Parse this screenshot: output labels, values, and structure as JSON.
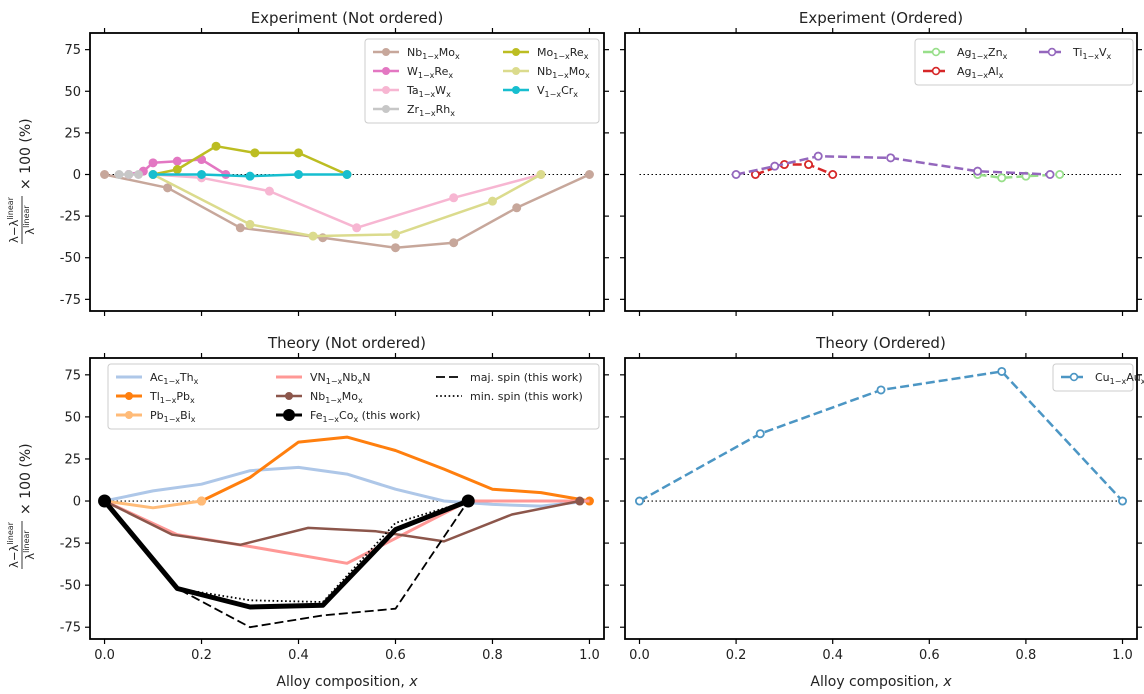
{
  "x_axis_label": "Alloy composition, x",
  "y_axis_label": {
    "numerator": "λ−λ",
    "numerator_sup": "linear",
    "denominator": "λ",
    "denominator_sup": "linear",
    "suffix": "× 100 (%)"
  },
  "chart_data": [
    {
      "type": "line",
      "title": "Experiment (Not ordered)",
      "xlim": [
        -0.03,
        1.03
      ],
      "ylim": [
        -82,
        85
      ],
      "xticks": [
        0.0,
        0.2,
        0.4,
        0.6,
        0.8,
        1.0
      ],
      "yticks": [
        -75,
        -50,
        -25,
        0,
        25,
        50,
        75
      ],
      "show_xtick_labels": false,
      "show_ytick_labels": true,
      "legend_position": "top-right",
      "legend_columns": 2,
      "series": [
        {
          "name": "Nb1−xMox",
          "label_parts": [
            [
              "Nb",
              ""
            ],
            [
              "1−x",
              "sub"
            ],
            [
              "Mo",
              ""
            ],
            [
              "x",
              "sub"
            ]
          ],
          "color": "#c7a79b",
          "style": "solid",
          "marker": "filled",
          "x": [
            0.0,
            0.13,
            0.28,
            0.45,
            0.6,
            0.72,
            0.85,
            1.0
          ],
          "y": [
            0,
            -8,
            -32,
            -38,
            -44,
            -41,
            -20,
            0
          ]
        },
        {
          "name": "W1−xRex",
          "label_parts": [
            [
              "W",
              ""
            ],
            [
              "1−x",
              "sub"
            ],
            [
              "Re",
              ""
            ],
            [
              "x",
              "sub"
            ]
          ],
          "color": "#e377c2",
          "style": "solid",
          "marker": "filled",
          "x": [
            0.05,
            0.08,
            0.1,
            0.15,
            0.2,
            0.25
          ],
          "y": [
            0,
            2,
            7,
            8,
            9,
            0
          ]
        },
        {
          "name": "Ta1−xWx",
          "label_parts": [
            [
              "Ta",
              ""
            ],
            [
              "1−x",
              "sub"
            ],
            [
              "W",
              ""
            ],
            [
              "x",
              "sub"
            ]
          ],
          "color": "#f7b6d2",
          "style": "solid",
          "marker": "filled",
          "x": [
            0.1,
            0.2,
            0.34,
            0.52,
            0.72,
            0.9
          ],
          "y": [
            0,
            -2,
            -10,
            -32,
            -14,
            0
          ]
        },
        {
          "name": "Zr1−xRhx",
          "label_parts": [
            [
              "Zr",
              ""
            ],
            [
              "1−x",
              "sub"
            ],
            [
              "Rh",
              ""
            ],
            [
              "x",
              "sub"
            ]
          ],
          "color": "#c7c7c7",
          "style": "solid",
          "marker": "filled",
          "x": [
            0.03,
            0.05,
            0.07
          ],
          "y": [
            0,
            0,
            0
          ]
        },
        {
          "name": "Mo1−xRex",
          "label_parts": [
            [
              "Mo",
              ""
            ],
            [
              "1−x",
              "sub"
            ],
            [
              "Re",
              ""
            ],
            [
              "x",
              "sub"
            ]
          ],
          "color": "#bcbd22",
          "style": "solid",
          "marker": "filled",
          "x": [
            0.1,
            0.15,
            0.23,
            0.31,
            0.4,
            0.5
          ],
          "y": [
            0,
            3,
            17,
            13,
            13,
            0
          ]
        },
        {
          "name": "Nb1−xMox",
          "label_parts": [
            [
              "Nb",
              ""
            ],
            [
              "1−x",
              "sub"
            ],
            [
              "Mo",
              ""
            ],
            [
              "x",
              "sub"
            ]
          ],
          "color": "#dbdb8d",
          "style": "solid",
          "marker": "filled",
          "x": [
            0.1,
            0.3,
            0.43,
            0.6,
            0.8,
            0.9
          ],
          "y": [
            0,
            -30,
            -37,
            -36,
            -16,
            0
          ]
        },
        {
          "name": "V1−xCrx",
          "label_parts": [
            [
              "V",
              ""
            ],
            [
              "1−x",
              "sub"
            ],
            [
              "Cr",
              ""
            ],
            [
              "x",
              "sub"
            ]
          ],
          "color": "#17becf",
          "style": "solid",
          "marker": "filled",
          "x": [
            0.1,
            0.2,
            0.3,
            0.4,
            0.5
          ],
          "y": [
            0,
            0,
            -1,
            0,
            0
          ]
        }
      ]
    },
    {
      "type": "line",
      "title": "Experiment (Ordered)",
      "xlim": [
        -0.03,
        1.03
      ],
      "ylim": [
        -82,
        85
      ],
      "xticks": [
        0.0,
        0.2,
        0.4,
        0.6,
        0.8,
        1.0
      ],
      "yticks": [
        -75,
        -50,
        -25,
        0,
        25,
        50,
        75
      ],
      "show_xtick_labels": false,
      "show_ytick_labels": false,
      "legend_position": "top-right",
      "legend_columns": 2,
      "series": [
        {
          "name": "Ag1−xZnx",
          "label_parts": [
            [
              "Ag",
              ""
            ],
            [
              "1−x",
              "sub"
            ],
            [
              "Zn",
              ""
            ],
            [
              "x",
              "sub"
            ]
          ],
          "color": "#98df8a",
          "style": "dashed",
          "marker": "open",
          "x": [
            0.7,
            0.75,
            0.8,
            0.87
          ],
          "y": [
            0,
            -2,
            -1,
            0
          ]
        },
        {
          "name": "Ag1−xAlx",
          "label_parts": [
            [
              "Ag",
              ""
            ],
            [
              "1−x",
              "sub"
            ],
            [
              "Al",
              ""
            ],
            [
              "x",
              "sub"
            ]
          ],
          "color": "#d62728",
          "style": "dashed",
          "marker": "open",
          "x": [
            0.24,
            0.3,
            0.35,
            0.4
          ],
          "y": [
            0,
            6,
            6,
            0
          ]
        },
        {
          "name": "Ti1−xVx",
          "label_parts": [
            [
              "Ti",
              ""
            ],
            [
              "1−x",
              "sub"
            ],
            [
              "V",
              ""
            ],
            [
              "x",
              "sub"
            ]
          ],
          "color": "#9467bd",
          "style": "dashed",
          "marker": "open",
          "x": [
            0.2,
            0.28,
            0.37,
            0.52,
            0.7,
            0.85
          ],
          "y": [
            0,
            5,
            11,
            10,
            2,
            0
          ]
        }
      ]
    },
    {
      "type": "line",
      "title": "Theory (Not ordered)",
      "xlim": [
        -0.03,
        1.03
      ],
      "ylim": [
        -82,
        85
      ],
      "xticks": [
        0.0,
        0.2,
        0.4,
        0.6,
        0.8,
        1.0
      ],
      "yticks": [
        -75,
        -50,
        -25,
        0,
        25,
        50,
        75
      ],
      "show_xtick_labels": true,
      "show_ytick_labels": true,
      "legend_position": "top",
      "legend_columns": 3,
      "series": [
        {
          "name": "Ac1−xThx",
          "label_parts": [
            [
              "Ac",
              ""
            ],
            [
              "1−x",
              "sub"
            ],
            [
              "Th",
              ""
            ],
            [
              "x",
              "sub"
            ]
          ],
          "color": "#aec7e8",
          "style": "solid",
          "marker": "none",
          "width": 3,
          "x": [
            0.0,
            0.1,
            0.2,
            0.3,
            0.4,
            0.5,
            0.6,
            0.7,
            0.8,
            0.9,
            1.0
          ],
          "y": [
            0,
            6,
            10,
            18,
            20,
            16,
            7,
            0,
            -2,
            -3,
            0
          ]
        },
        {
          "name": "Tl1−xPbx",
          "label_parts": [
            [
              "Tl",
              ""
            ],
            [
              "1−x",
              "sub"
            ],
            [
              "Pb",
              ""
            ],
            [
              "x",
              "sub"
            ]
          ],
          "color": "#ff7f0e",
          "style": "solid",
          "marker": "end",
          "width": 3,
          "x": [
            0.2,
            0.3,
            0.4,
            0.5,
            0.6,
            0.7,
            0.8,
            0.9,
            1.0
          ],
          "y": [
            0,
            14,
            35,
            38,
            30,
            19,
            7,
            5,
            0
          ]
        },
        {
          "name": "Pb1−xBix",
          "label_parts": [
            [
              "Pb",
              ""
            ],
            [
              "1−x",
              "sub"
            ],
            [
              "Bi",
              ""
            ],
            [
              "x",
              "sub"
            ]
          ],
          "color": "#ffbb78",
          "style": "solid",
          "marker": "end",
          "width": 3,
          "x": [
            0.0,
            0.1,
            0.2
          ],
          "y": [
            0,
            -4,
            0
          ]
        },
        {
          "name": "VN1−xNbxN",
          "label_parts": [
            [
              "VN",
              ""
            ],
            [
              "1−x",
              "sub"
            ],
            [
              "Nb",
              ""
            ],
            [
              "x",
              "sub"
            ],
            [
              "N",
              ""
            ]
          ],
          "color": "#ff9896",
          "style": "solid",
          "marker": "none",
          "width": 3,
          "x": [
            0.0,
            0.15,
            0.3,
            0.5,
            0.75,
            0.8,
            1.0
          ],
          "y": [
            0,
            -20,
            -27,
            -37,
            0,
            0,
            0
          ]
        },
        {
          "name": "Nb1−xMox",
          "label_parts": [
            [
              "Nb",
              ""
            ],
            [
              "1−x",
              "sub"
            ],
            [
              "Mo",
              ""
            ],
            [
              "x",
              "sub"
            ]
          ],
          "color": "#8c564b",
          "style": "solid",
          "marker": "end",
          "width": 2.5,
          "x": [
            0.0,
            0.14,
            0.28,
            0.42,
            0.56,
            0.7,
            0.84,
            0.98
          ],
          "y": [
            0,
            -20,
            -26,
            -16,
            -18,
            -24,
            -8,
            0
          ]
        },
        {
          "name": "Fe1−xCox (this work)",
          "label_parts": [
            [
              "Fe",
              ""
            ],
            [
              "1−x",
              "sub"
            ],
            [
              "Co",
              ""
            ],
            [
              "x",
              "sub"
            ],
            [
              " (this work)",
              ""
            ]
          ],
          "color": "#000000",
          "style": "solid",
          "marker": "bigfilled",
          "width": 5,
          "x": [
            0.0,
            0.15,
            0.3,
            0.45,
            0.6,
            0.75
          ],
          "y": [
            0,
            -52,
            -63,
            -62,
            -17,
            0
          ]
        },
        {
          "name": "maj. spin (this work)",
          "label_parts": [
            [
              "maj. spin (this work)",
              ""
            ]
          ],
          "color": "#000000",
          "style": "dashed",
          "marker": "none",
          "width": 1.8,
          "x": [
            0.0,
            0.15,
            0.3,
            0.45,
            0.6,
            0.75
          ],
          "y": [
            0,
            -52,
            -75,
            -68,
            -64,
            0
          ]
        },
        {
          "name": "min. spin (this work)",
          "label_parts": [
            [
              "min. spin (this work)",
              ""
            ]
          ],
          "color": "#000000",
          "style": "dotted",
          "marker": "none",
          "width": 1.8,
          "x": [
            0.0,
            0.15,
            0.3,
            0.45,
            0.6,
            0.75
          ],
          "y": [
            0,
            -52,
            -59,
            -60,
            -13,
            0
          ]
        }
      ]
    },
    {
      "type": "line",
      "title": "Theory (Ordered)",
      "xlim": [
        -0.03,
        1.03
      ],
      "ylim": [
        -82,
        85
      ],
      "xticks": [
        0.0,
        0.2,
        0.4,
        0.6,
        0.8,
        1.0
      ],
      "yticks": [
        -75,
        -50,
        -25,
        0,
        25,
        50,
        75
      ],
      "show_xtick_labels": true,
      "show_ytick_labels": false,
      "legend_position": "top-right",
      "legend_columns": 1,
      "series": [
        {
          "name": "Cu1−xAux",
          "label_parts": [
            [
              "Cu",
              ""
            ],
            [
              "1−x",
              "sub"
            ],
            [
              "Au",
              ""
            ],
            [
              "x",
              "sub"
            ]
          ],
          "color": "#4c96c4",
          "style": "dashed",
          "marker": "open",
          "x": [
            0.0,
            0.25,
            0.5,
            0.75,
            1.0
          ],
          "y": [
            0,
            40,
            66,
            77,
            0
          ]
        }
      ]
    }
  ]
}
